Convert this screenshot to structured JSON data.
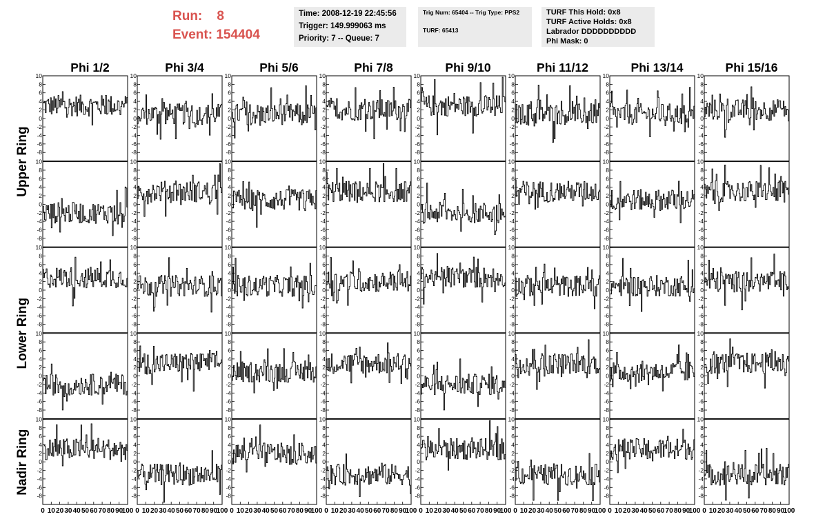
{
  "header": {
    "run_label": "Run:",
    "run_value": "8",
    "event_label": "Event:",
    "event_value": "154404",
    "info_time": "Time: 2008-12-19 22:45:56",
    "info_trigger": "Trigger: 149.999063 ms",
    "info_priority": "Priority: 7 -- Queue: 7",
    "trig_num": "Trig Num: 65404 -- Trig Type: PPS2",
    "turf": "TURF: 65413",
    "turf_hold": "TURF This Hold: 0x8",
    "turf_active": "TURF Active Holds: 0x8",
    "labrador": "Labrador DDDDDDDDDD",
    "phi_mask": "Phi Mask: 0"
  },
  "colors": {
    "accent": "#d9534f",
    "info_bg": "#ebebeb",
    "trace": "#000000"
  },
  "chart_data": {
    "type": "line",
    "columns": [
      "Phi 1/2",
      "Phi 3/4",
      "Phi 5/6",
      "Phi 7/8",
      "Phi 9/10",
      "Phi 11/12",
      "Phi 13/14",
      "Phi 15/16"
    ],
    "row_labels": [
      "Upper Ring",
      "Lower Ring",
      "Nadir Ring"
    ],
    "n_rows": 5,
    "ylim": [
      -10,
      10
    ],
    "yticks": [
      -8,
      -6,
      -4,
      -2,
      0,
      2,
      4,
      6,
      8,
      10
    ],
    "xlim": [
      0,
      100
    ],
    "xticks": [
      0,
      10,
      20,
      30,
      40,
      50,
      60,
      70,
      80,
      90,
      100
    ],
    "n_samples": 100,
    "panel_baselines": [
      [
        3,
        1,
        1,
        2,
        3,
        1,
        1,
        2
      ],
      [
        -2,
        3,
        1,
        3,
        -2,
        3,
        1,
        3
      ],
      [
        3,
        1,
        1,
        2,
        3,
        1,
        1,
        2
      ],
      [
        -2,
        3,
        1,
        3,
        -2,
        3,
        1,
        3
      ],
      [
        3,
        -3,
        2,
        -3,
        3,
        -3,
        3,
        -3
      ]
    ],
    "panel_amplitude": 2.5
  }
}
